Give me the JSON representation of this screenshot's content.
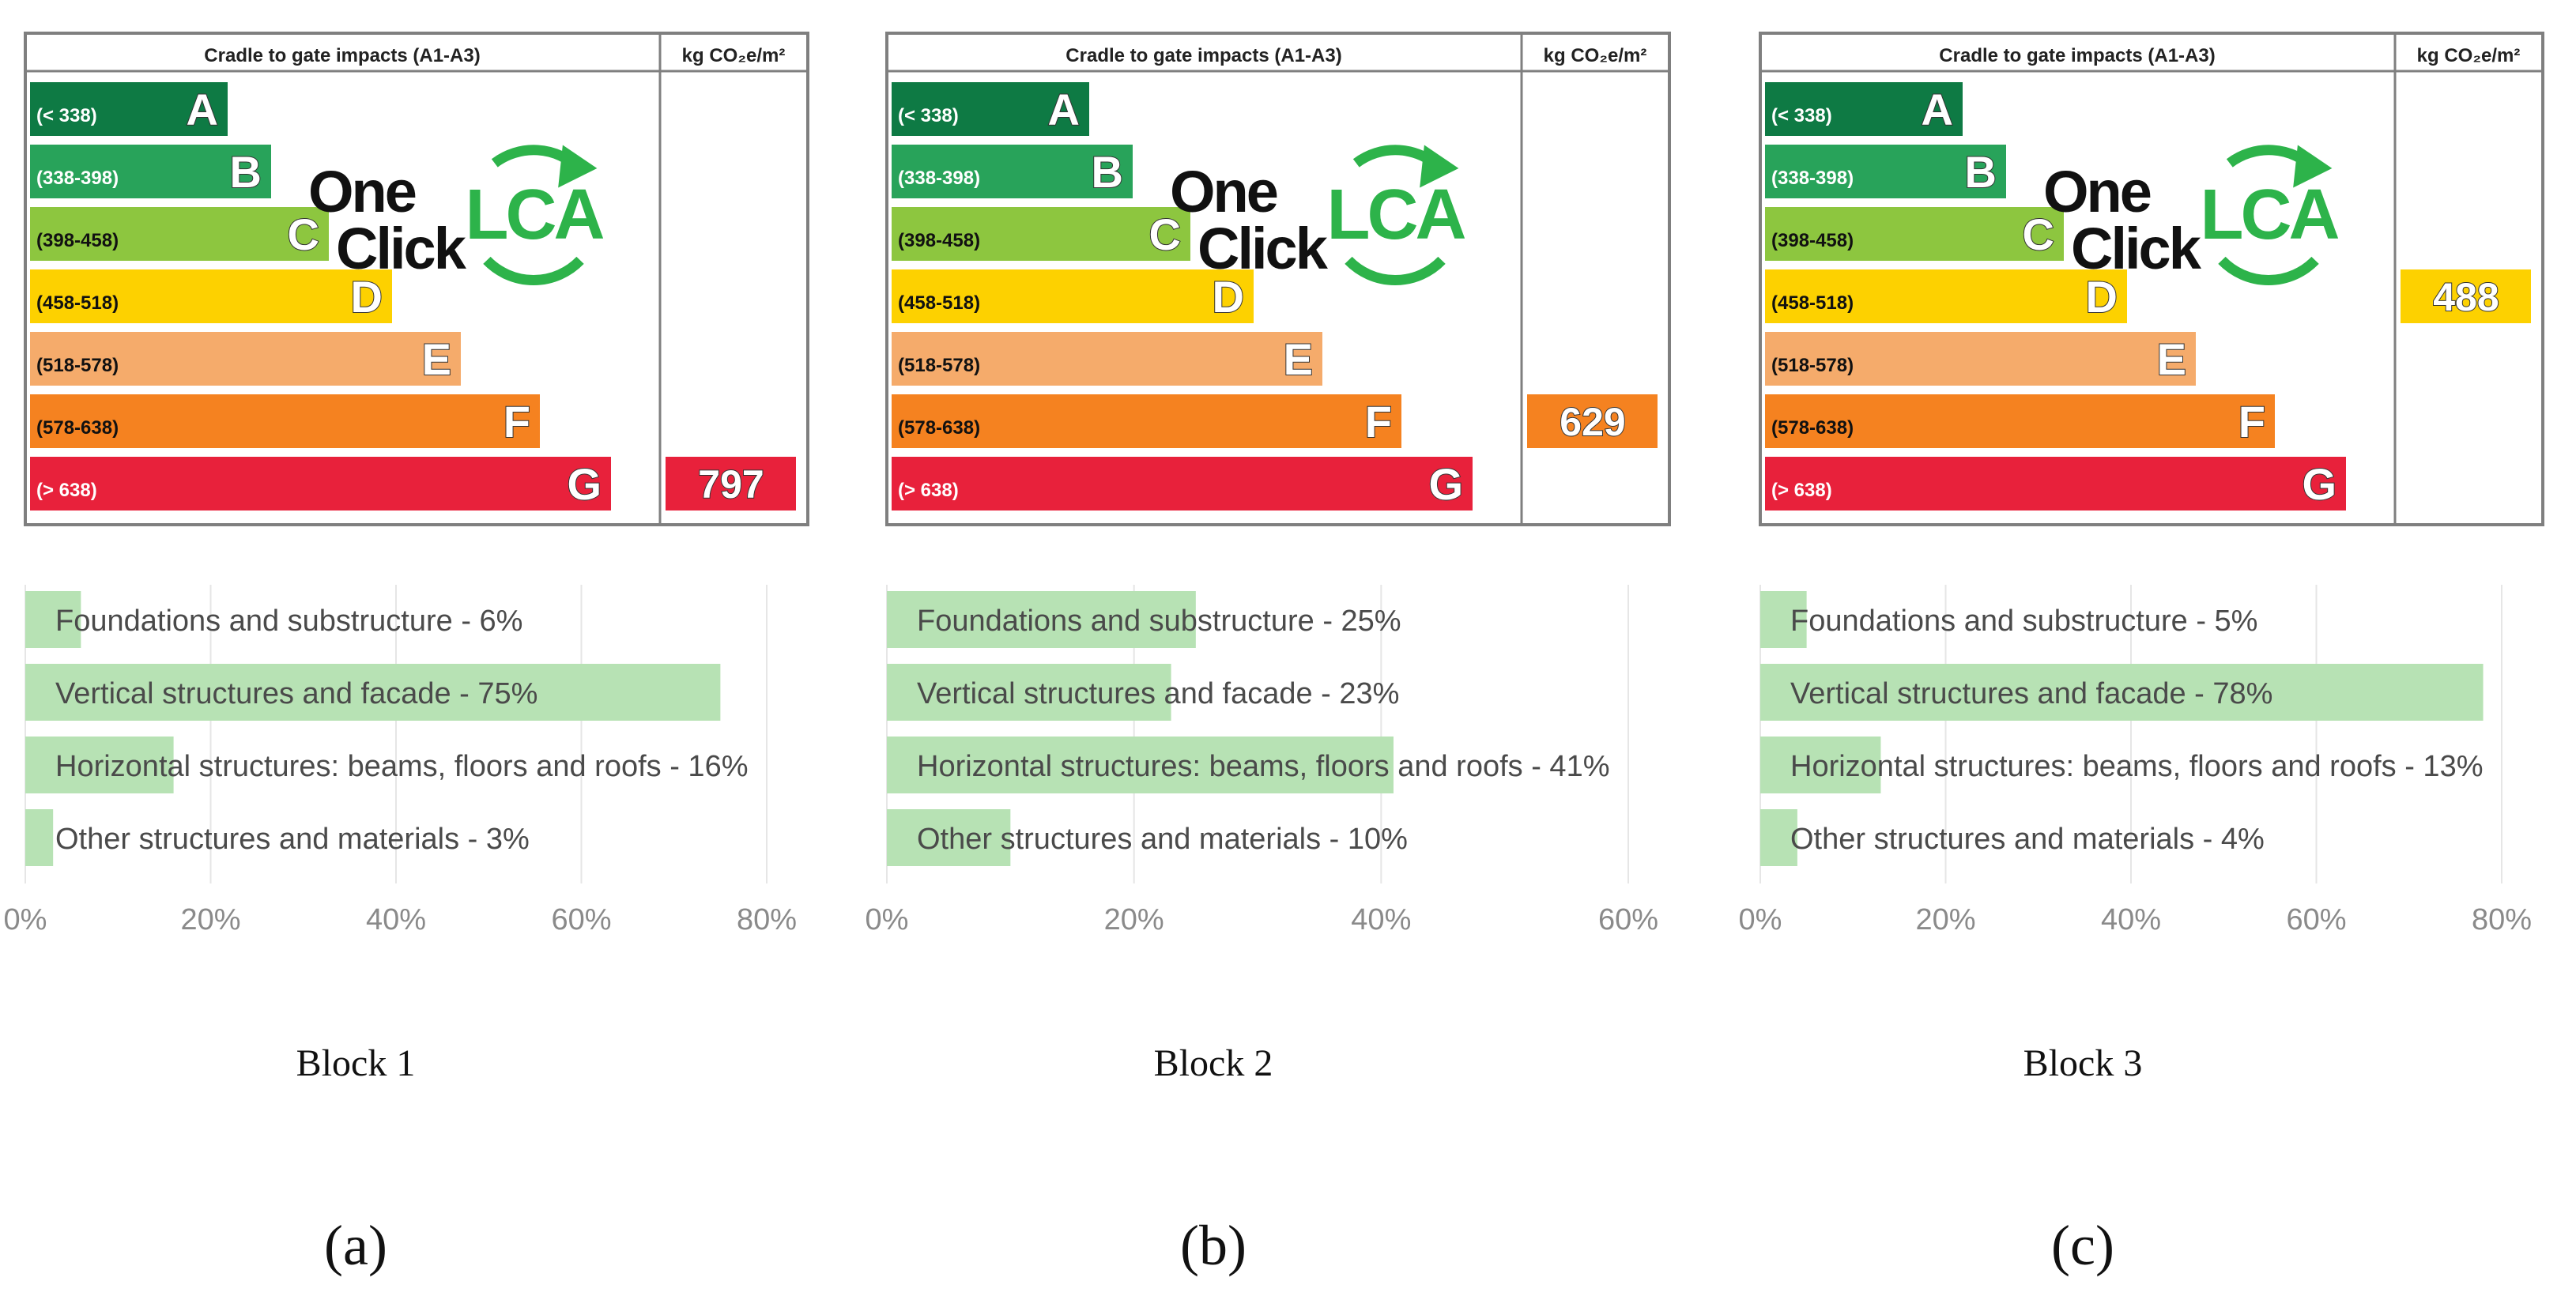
{
  "label_header": "Cradle to gate impacts (A1-A3)",
  "unit_header": "kg CO₂e/m²",
  "logo": {
    "text_one": "One",
    "text_click": "Click",
    "text_lca": "LCA"
  },
  "colors": {
    "accent_green": "#2db34a",
    "bar_green": "#b7e2b4",
    "axis_text": "#8a8a8a",
    "grid": "#e6e6e6",
    "border": "#7f7f7f"
  },
  "classes": [
    {
      "letter": "A",
      "range": "(< 338)",
      "color": "#0e7a44"
    },
    {
      "letter": "B",
      "range": "(338-398)",
      "color": "#28a35a"
    },
    {
      "letter": "C",
      "range": "(398-458)",
      "color": "#8dc63f"
    },
    {
      "letter": "D",
      "range": "(458-518)",
      "color": "#fdd100"
    },
    {
      "letter": "E",
      "range": "(518-578)",
      "color": "#f5ab6b"
    },
    {
      "letter": "F",
      "range": "(578-638)",
      "color": "#f58220"
    },
    {
      "letter": "G",
      "range": "(> 638)",
      "color": "#e8213b"
    }
  ],
  "panels": [
    {
      "block_name": "Block 1",
      "sub_label": "(a)",
      "value": "797",
      "value_class": "G"
    },
    {
      "block_name": "Block 2",
      "sub_label": "(b)",
      "value": "629",
      "value_class": "F"
    },
    {
      "block_name": "Block 3",
      "sub_label": "(c)",
      "value": "488",
      "value_class": "D"
    }
  ],
  "chart_data": [
    {
      "type": "bar",
      "orientation": "horizontal",
      "categories": [
        "Foundations and substructure",
        "Vertical structures and facade",
        "Horizontal structures: beams, floors and roofs",
        "Other structures and materials"
      ],
      "labels": [
        "Foundations and substructure - 6%",
        "Vertical structures and facade - 75%",
        "Horizontal structures: beams, floors and roofs - 16%",
        "Other structures and materials - 3%"
      ],
      "values": [
        6,
        75,
        16,
        3
      ],
      "xlim": [
        0,
        80
      ],
      "ticks": [
        "0%",
        "20%",
        "40%",
        "60%",
        "80%"
      ],
      "grid": true
    },
    {
      "type": "bar",
      "orientation": "horizontal",
      "categories": [
        "Foundations and substructure",
        "Vertical structures and facade",
        "Horizontal structures: beams, floors and roofs",
        "Other structures and materials"
      ],
      "labels": [
        "Foundations and substructure - 25%",
        "Vertical structures and facade - 23%",
        "Horizontal structures: beams, floors and roofs - 41%",
        "Other structures and materials - 10%"
      ],
      "values": [
        25,
        23,
        41,
        10
      ],
      "xlim": [
        0,
        60
      ],
      "ticks": [
        "0%",
        "20%",
        "40%",
        "60%"
      ],
      "grid": true
    },
    {
      "type": "bar",
      "orientation": "horizontal",
      "categories": [
        "Foundations and substructure",
        "Vertical structures and facade",
        "Horizontal structures: beams, floors and roofs",
        "Other structures and materials"
      ],
      "labels": [
        "Foundations and substructure - 5%",
        "Vertical structures and facade - 78%",
        "Horizontal structures: beams, floors and roofs - 13%",
        "Other structures and materials - 4%"
      ],
      "values": [
        5,
        78,
        13,
        4
      ],
      "xlim": [
        0,
        80
      ],
      "ticks": [
        "0%",
        "20%",
        "40%",
        "60%",
        "80%"
      ],
      "grid": true
    }
  ]
}
